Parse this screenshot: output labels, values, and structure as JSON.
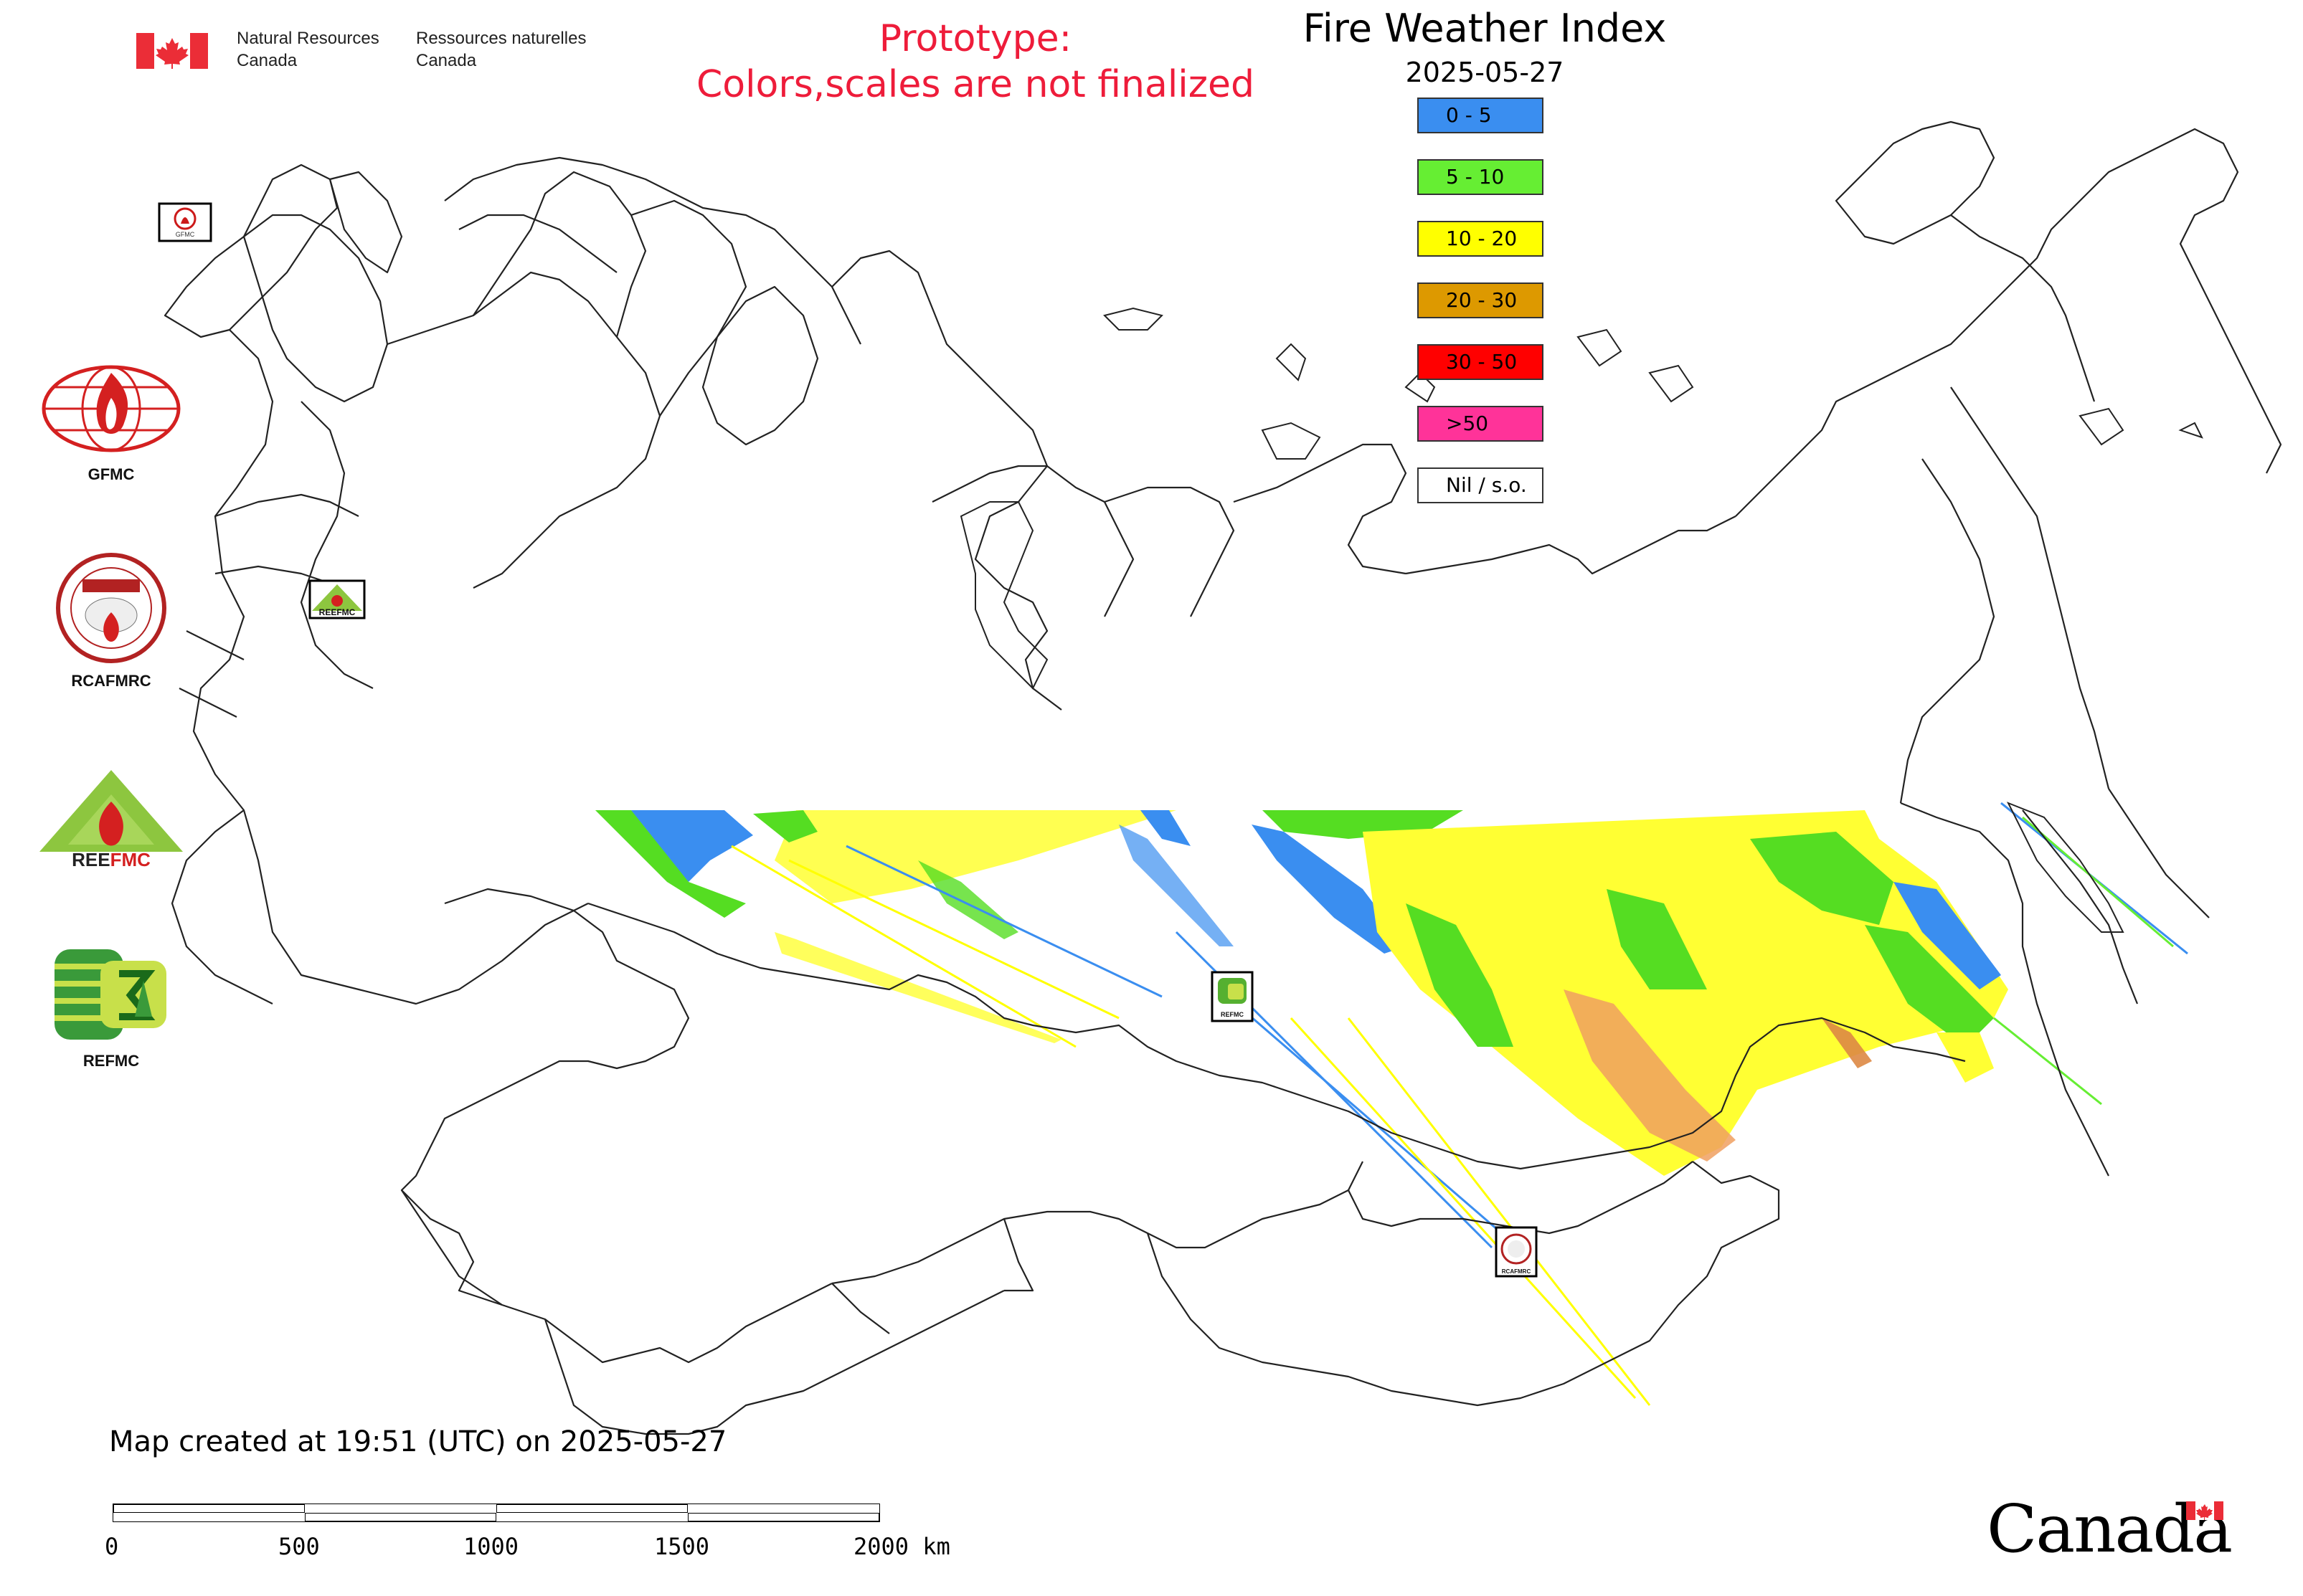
{
  "header": {
    "gov_en_line1": "Natural Resources",
    "gov_en_line2": "Canada",
    "gov_fr_line1": "Ressources naturelles",
    "gov_fr_line2": "Canada",
    "prototype_line1": "Prototype:",
    "prototype_line2": "Colors,scales are not finalized"
  },
  "title": "Fire Weather Index",
  "date": "2025-05-27",
  "legend": [
    {
      "label": "0 - 5",
      "color": "#3a8ef0"
    },
    {
      "label": "5 - 10",
      "color": "#66ee33"
    },
    {
      "label": "10 - 20",
      "color": "#ffff00"
    },
    {
      "label": "20 - 30",
      "color": "#dd9900"
    },
    {
      "label": "30 - 50",
      "color": "#ff0000"
    },
    {
      "label": ">50",
      "color": "#ff3399"
    },
    {
      "label": "Nil / s.o.",
      "color": "#ffffff"
    }
  ],
  "logos": [
    {
      "caption": "GFMC"
    },
    {
      "caption": "RCAFMRC"
    },
    {
      "caption": "REEFMC"
    },
    {
      "caption": "REFMC"
    }
  ],
  "small_badges": [
    {
      "caption": "GFMC"
    },
    {
      "caption": "REEFMC"
    },
    {
      "caption": "REFMC"
    },
    {
      "caption": "RCAFMRC"
    }
  ],
  "footer": {
    "created": "Map created at 19:51 (UTC) on 2025-05-27",
    "scale_labels": [
      "0",
      "500",
      "1000",
      "1500",
      "2000 km"
    ]
  },
  "wordmark": "Canada",
  "colors": {
    "border": "#222222",
    "prototype": "#ee1c3a",
    "canada_red": "#eb2d37"
  }
}
